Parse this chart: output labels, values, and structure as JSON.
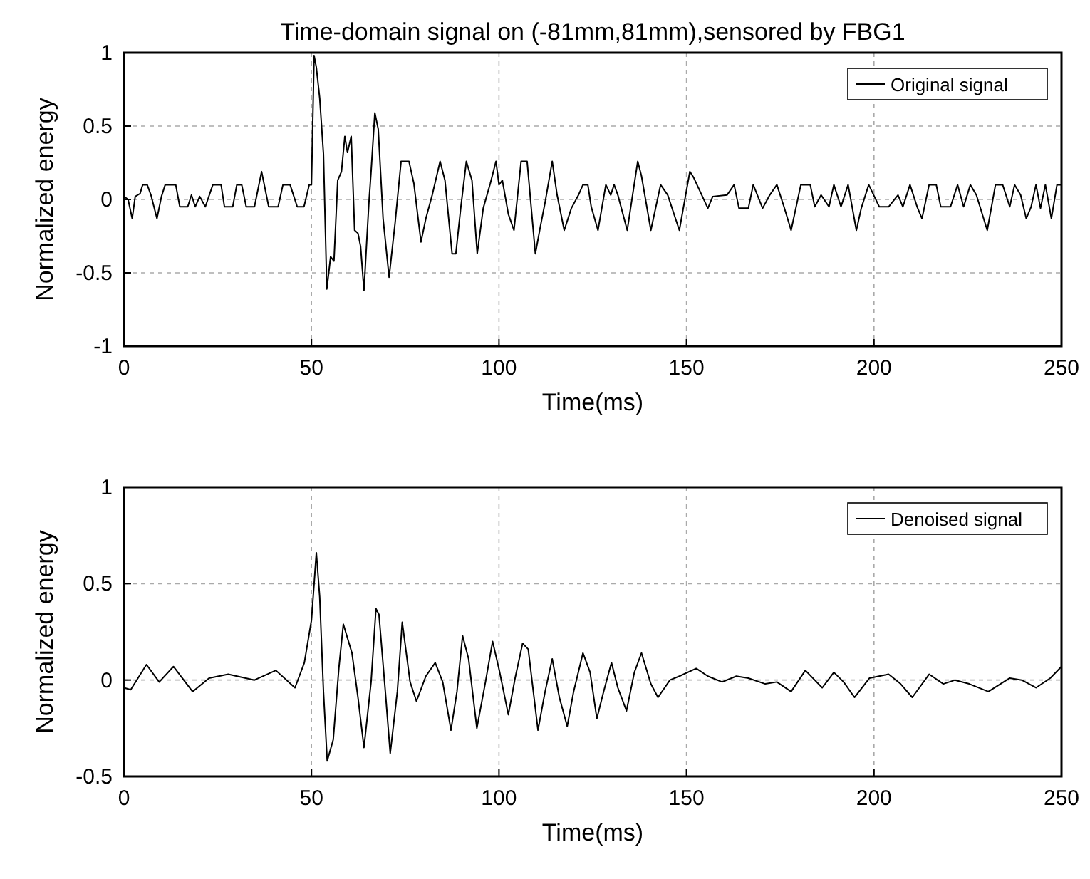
{
  "chart_data": [
    {
      "type": "line",
      "title": "Time-domain signal on (-81mm,81mm),sensored by FBG1",
      "xlabel": "Time(ms)",
      "ylabel": "Normalized energy",
      "xlim": [
        0,
        250
      ],
      "xticks": [
        0,
        50,
        100,
        150,
        200,
        250
      ],
      "ylim": [
        -1,
        1
      ],
      "yticks": [
        -1,
        -0.5,
        0,
        0.5,
        1
      ],
      "grid": true,
      "legend": "top right",
      "line_style": "solid",
      "series": [
        {
          "name": "Original signal",
          "color": "#000000",
          "x": [
            0,
            1.1,
            2.2,
            3,
            4.3,
            5,
            6.2,
            7.2,
            8.8,
            10,
            11,
            13.8,
            14.9,
            17,
            18,
            19,
            20.2,
            21.7,
            23.7,
            25.9,
            26.8,
            29,
            30.1,
            31.4,
            32.6,
            34.8,
            36.7,
            38.6,
            41.1,
            42.4,
            44.3,
            46.2,
            48,
            49.4,
            50,
            50.7,
            51.3,
            52.2,
            53.2,
            54.1,
            55.1,
            56,
            57,
            58,
            58.9,
            59.6,
            60.6,
            61.5,
            62.4,
            63.1,
            64,
            65.3,
            65.9,
            66.9,
            67.8,
            69.1,
            70.7,
            72.3,
            73.9,
            76,
            77.3,
            79.2,
            80.5,
            82.2,
            84.3,
            85.6,
            87.5,
            88.5,
            89.8,
            91.3,
            92.8,
            94.2,
            95.8,
            97.7,
            99.2,
            100,
            100.9,
            102.5,
            104,
            105.9,
            107.5,
            109.7,
            111,
            112.3,
            114.2,
            115.5,
            117.4,
            119.3,
            121.2,
            122.4,
            123.7,
            124.6,
            126.4,
            128.5,
            129.8,
            130.7,
            131.7,
            134.2,
            137,
            138,
            140.5,
            143.1,
            145,
            148.1,
            150.9,
            151.9,
            155.7,
            157,
            160.8,
            162.7,
            164,
            166.5,
            167.8,
            170.3,
            172.2,
            174.1,
            176,
            177.9,
            180.5,
            183,
            184.2,
            185.9,
            188,
            189.3,
            191.2,
            193.1,
            195.3,
            196.6,
            198.6,
            201.4,
            203.9,
            206.4,
            207.7,
            209.6,
            211.5,
            212.8,
            214.7,
            216.6,
            217.8,
            220.4,
            222.3,
            223.9,
            225.7,
            227.3,
            230.2,
            232.4,
            234.3,
            236.2,
            237.5,
            239.1,
            240.6,
            241.9,
            243.2,
            244.4,
            245.7,
            247.3,
            248.8,
            250
          ],
          "values": [
            0.02,
            0,
            -0.13,
            0.02,
            0.04,
            0.1,
            0.1,
            0.03,
            -0.13,
            0.02,
            0.1,
            0.1,
            -0.05,
            -0.05,
            0.03,
            -0.05,
            0.02,
            -0.05,
            0.1,
            0.1,
            -0.05,
            -0.05,
            0.1,
            0.1,
            -0.05,
            -0.05,
            0.19,
            -0.05,
            -0.05,
            0.1,
            0.1,
            -0.05,
            -0.05,
            0.1,
            0.1,
            0.98,
            0.9,
            0.69,
            0.31,
            -0.61,
            -0.39,
            -0.42,
            0.13,
            0.19,
            0.43,
            0.32,
            0.43,
            -0.21,
            -0.23,
            -0.32,
            -0.62,
            -0.03,
            0.19,
            0.59,
            0.48,
            -0.13,
            -0.53,
            -0.16,
            0.26,
            0.26,
            0.11,
            -0.29,
            -0.13,
            0.03,
            0.26,
            0.13,
            -0.37,
            -0.37,
            -0.06,
            0.26,
            0.13,
            -0.37,
            -0.06,
            0.11,
            0.26,
            0.1,
            0.13,
            -0.1,
            -0.21,
            0.26,
            0.26,
            -0.37,
            -0.19,
            -0.02,
            0.26,
            0.03,
            -0.21,
            -0.06,
            0.03,
            0.1,
            0.1,
            -0.05,
            -0.21,
            0.1,
            0.03,
            0.1,
            0.03,
            -0.21,
            0.26,
            0.16,
            -0.21,
            0.1,
            0.03,
            -0.21,
            0.19,
            0.15,
            -0.06,
            0.02,
            0.03,
            0.1,
            -0.06,
            -0.06,
            0.1,
            -0.06,
            0.03,
            0.1,
            -0.05,
            -0.21,
            0.1,
            0.1,
            -0.05,
            0.03,
            -0.05,
            0.1,
            -0.05,
            0.1,
            -0.21,
            -0.06,
            0.1,
            -0.05,
            -0.05,
            0.03,
            -0.05,
            0.1,
            -0.05,
            -0.13,
            0.1,
            0.1,
            -0.05,
            -0.05,
            0.1,
            -0.05,
            0.1,
            0.03,
            -0.21,
            0.1,
            0.1,
            -0.05,
            0.1,
            0.03,
            -0.13,
            -0.05,
            0.1,
            -0.06,
            0.1,
            -0.13,
            0.1,
            0.1
          ]
        }
      ]
    },
    {
      "type": "line",
      "xlabel": "Time(ms)",
      "ylabel": "Normalized energy",
      "xlim": [
        0,
        250
      ],
      "xticks": [
        0,
        50,
        100,
        150,
        200,
        250
      ],
      "ylim": [
        -0.5,
        1
      ],
      "yticks": [
        -0.5,
        0,
        0.5,
        1
      ],
      "grid": true,
      "legend": "top right",
      "line_style": "solid",
      "series": [
        {
          "name": "Denoised signal",
          "color": "#000000",
          "x": [
            0,
            1.8,
            6,
            9.4,
            13.2,
            18.3,
            22.7,
            27.8,
            34.8,
            40.5,
            45.6,
            48.1,
            50,
            51.3,
            52.2,
            53.2,
            54.2,
            55.8,
            57.3,
            58.5,
            60.8,
            62.4,
            64,
            65.9,
            67.2,
            68,
            69.7,
            71,
            72.9,
            74.2,
            76.3,
            78,
            80.5,
            83,
            85,
            87.2,
            88.8,
            90.3,
            91.9,
            94.1,
            96.4,
            98.3,
            100.2,
            102.5,
            104.3,
            106.3,
            107.8,
            110.4,
            112.3,
            114.2,
            116.1,
            118.2,
            119.9,
            122.4,
            124.3,
            126.1,
            127.9,
            130,
            131.7,
            134,
            136.1,
            138,
            140.5,
            142.4,
            145.6,
            148.1,
            152.6,
            155.7,
            159.5,
            163.3,
            166.5,
            171,
            174.1,
            177.9,
            181.7,
            186.2,
            189.3,
            191.9,
            194.8,
            198.8,
            203.9,
            207.1,
            210.2,
            214.7,
            218.5,
            221.6,
            225.4,
            230.5,
            236.2,
            239.4,
            243.2,
            247,
            250
          ],
          "values": [
            -0.04,
            -0.05,
            0.08,
            -0.01,
            0.07,
            -0.06,
            0.01,
            0.03,
            0,
            0.05,
            -0.04,
            0.09,
            0.31,
            0.66,
            0.43,
            -0.06,
            -0.42,
            -0.31,
            0.06,
            0.29,
            0.14,
            -0.09,
            -0.35,
            -0.01,
            0.37,
            0.34,
            -0.06,
            -0.38,
            -0.06,
            0.3,
            -0.01,
            -0.11,
            0.02,
            0.09,
            -0.01,
            -0.26,
            -0.06,
            0.23,
            0.11,
            -0.25,
            -0.01,
            0.2,
            0.04,
            -0.18,
            0.01,
            0.19,
            0.16,
            -0.26,
            -0.06,
            0.11,
            -0.09,
            -0.24,
            -0.06,
            0.14,
            0.04,
            -0.2,
            -0.06,
            0.09,
            -0.04,
            -0.16,
            0.04,
            0.14,
            -0.02,
            -0.09,
            0,
            0.02,
            0.06,
            0.02,
            -0.01,
            0.02,
            0.01,
            -0.02,
            -0.01,
            -0.06,
            0.05,
            -0.04,
            0.04,
            -0.01,
            -0.09,
            0.01,
            0.03,
            -0.02,
            -0.09,
            0.03,
            -0.02,
            0,
            -0.02,
            -0.06,
            0.01,
            0,
            -0.04,
            0.01,
            0.07
          ]
        }
      ]
    }
  ]
}
